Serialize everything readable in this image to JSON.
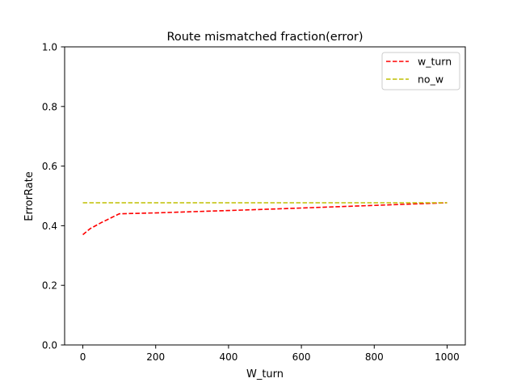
{
  "chart_data": {
    "type": "line",
    "title": "Route mismatched fraction(error)",
    "xlabel": "W_turn",
    "ylabel": "ErrorRate",
    "xlim": [
      -50,
      1050
    ],
    "ylim": [
      0.0,
      1.0
    ],
    "xticks": [
      0,
      200,
      400,
      600,
      800,
      1000
    ],
    "xtick_labels": [
      "0",
      "200",
      "400",
      "600",
      "800",
      "1000"
    ],
    "yticks": [
      0.0,
      0.2,
      0.4,
      0.6,
      0.8,
      1.0
    ],
    "ytick_labels": [
      "0.0",
      "0.2",
      "0.4",
      "0.6",
      "0.8",
      "1.0"
    ],
    "grid": false,
    "legend_position": "top-right",
    "series": [
      {
        "name": "w_turn",
        "color": "#ff0000",
        "linestyle": "dashed",
        "x": [
          0,
          10,
          20,
          50,
          100,
          200,
          500,
          1000
        ],
        "y": [
          0.37,
          0.38,
          0.39,
          0.41,
          0.44,
          0.443,
          0.455,
          0.477
        ]
      },
      {
        "name": "no_w",
        "color": "#bfbf00",
        "linestyle": "dashed",
        "x": [
          0,
          1000
        ],
        "y": [
          0.477,
          0.477
        ]
      }
    ]
  }
}
